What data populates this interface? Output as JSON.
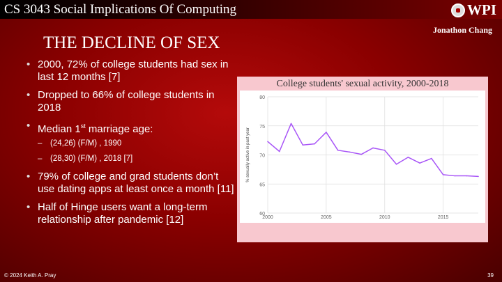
{
  "header": {
    "course": "CS 3043 Social Implications Of Computing",
    "logo_text": "WPI",
    "author": "Jonathon Chang"
  },
  "slide": {
    "title": "THE DECLINE OF SEX",
    "bullets": [
      {
        "text": "2000, 72% of college students had sex in last 12 months [7]"
      },
      {
        "text": "Dropped to 66% of college students in 2018"
      },
      {
        "text_pre": "Median 1",
        "text_sup": "st",
        "text_post": " marriage age:",
        "subs": [
          "(24,26) (F/M) , 1990",
          "(28,30) (F/M) , 2018 [7]"
        ]
      },
      {
        "text": "79% of college and grad students don’t use dating apps at least once a month [11]"
      },
      {
        "text": "Half of Hinge users want a long-term relationship after pandemic [12]"
      }
    ]
  },
  "chart_data": {
    "type": "line",
    "title": "College students' sexual activity, 2000-2018",
    "xlabel": "",
    "ylabel": "% sexually active in past year",
    "x": [
      2000,
      2001,
      2002,
      2003,
      2004,
      2005,
      2006,
      2007,
      2008,
      2009,
      2010,
      2011,
      2012,
      2013,
      2014,
      2015,
      2016,
      2017,
      2018
    ],
    "series": [
      {
        "values": [
          72.3,
          70.6,
          75.4,
          71.7,
          71.9,
          73.9,
          70.8,
          70.5,
          70.1,
          71.2,
          70.8,
          68.4,
          69.6,
          68.6,
          69.4,
          66.6,
          66.4,
          66.4,
          66.3
        ],
        "color": "#a855f7"
      }
    ],
    "xlim": [
      2000,
      2018
    ],
    "ylim": [
      60,
      80
    ],
    "xticks": [
      "2000",
      "2005",
      "2010",
      "2015"
    ],
    "yticks": [
      "60",
      "65",
      "70",
      "75",
      "80"
    ],
    "grid": true
  },
  "footer": {
    "copyright": "© 2024 Keith A. Pray",
    "page": "39"
  }
}
